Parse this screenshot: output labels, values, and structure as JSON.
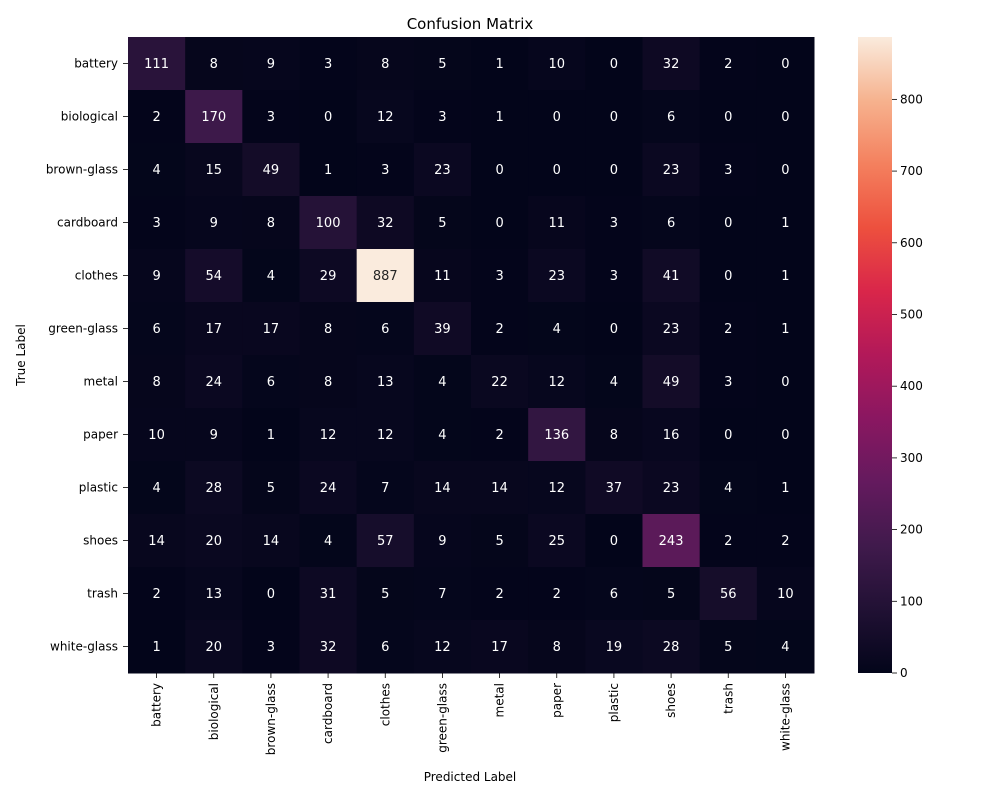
{
  "chart_data": {
    "type": "heatmap",
    "title": "Confusion Matrix",
    "xlabel": "Predicted Label",
    "ylabel": "True Label",
    "x_categories": [
      "battery",
      "biological",
      "brown-glass",
      "cardboard",
      "clothes",
      "green-glass",
      "metal",
      "paper",
      "plastic",
      "shoes",
      "trash",
      "white-glass"
    ],
    "y_categories": [
      "battery",
      "biological",
      "brown-glass",
      "cardboard",
      "clothes",
      "green-glass",
      "metal",
      "paper",
      "plastic",
      "shoes",
      "trash",
      "white-glass"
    ],
    "values": [
      [
        111,
        8,
        9,
        3,
        8,
        5,
        1,
        10,
        0,
        32,
        2,
        0
      ],
      [
        2,
        170,
        3,
        0,
        12,
        3,
        1,
        0,
        0,
        6,
        0,
        0
      ],
      [
        4,
        15,
        49,
        1,
        3,
        23,
        0,
        0,
        0,
        23,
        3,
        0
      ],
      [
        3,
        9,
        8,
        100,
        32,
        5,
        0,
        11,
        3,
        6,
        0,
        1
      ],
      [
        9,
        54,
        4,
        29,
        887,
        11,
        3,
        23,
        3,
        41,
        0,
        1
      ],
      [
        6,
        17,
        17,
        8,
        6,
        39,
        2,
        4,
        0,
        23,
        2,
        1
      ],
      [
        8,
        24,
        6,
        8,
        13,
        4,
        22,
        12,
        4,
        49,
        3,
        0
      ],
      [
        10,
        9,
        1,
        12,
        12,
        4,
        2,
        136,
        8,
        16,
        0,
        0
      ],
      [
        4,
        28,
        5,
        24,
        7,
        14,
        14,
        12,
        37,
        23,
        4,
        1
      ],
      [
        14,
        20,
        14,
        4,
        57,
        9,
        5,
        25,
        0,
        243,
        2,
        2
      ],
      [
        2,
        13,
        0,
        31,
        5,
        7,
        2,
        2,
        6,
        5,
        56,
        10
      ],
      [
        1,
        20,
        3,
        32,
        6,
        12,
        17,
        8,
        19,
        28,
        5,
        4
      ]
    ],
    "colorbar": {
      "colormap": "rocket",
      "range": [
        0,
        887
      ],
      "ticks": [
        0,
        100,
        200,
        300,
        400,
        500,
        600,
        700,
        800
      ]
    }
  }
}
